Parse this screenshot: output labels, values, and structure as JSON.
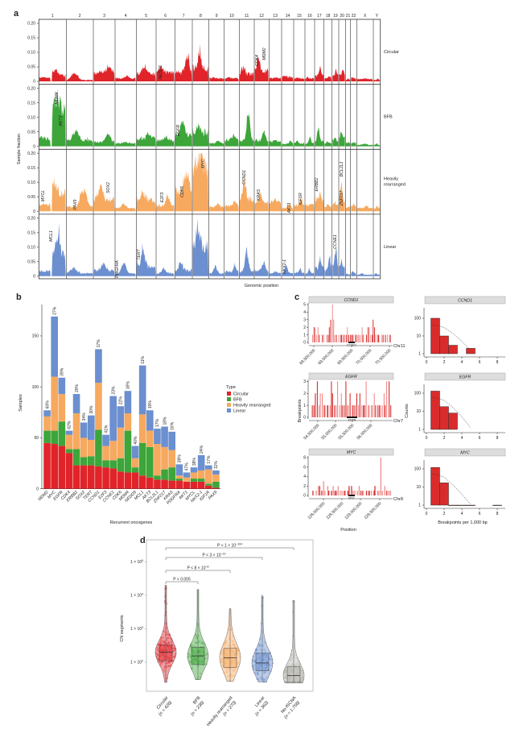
{
  "panel_labels": [
    "a",
    "b",
    "c",
    "d"
  ],
  "chart_data": [
    {
      "panel": "a",
      "type": "area",
      "ylabel": "Sample fraction",
      "xlabel": "Genomic position",
      "ylim": [
        0,
        0.2
      ],
      "yticks": [
        "0",
        "0.05",
        "0.10",
        "0.15",
        "0.20"
      ],
      "yticks_values": [
        0,
        0.05,
        0.1,
        0.15,
        0.2
      ],
      "chromosomes": [
        "1",
        "2",
        "3",
        "4",
        "5",
        "6",
        "7",
        "8",
        "9",
        "10",
        "11",
        "12",
        "13",
        "14",
        "15",
        "16",
        "17",
        "18",
        "19",
        "20",
        "21",
        "22",
        "X",
        "Y"
      ],
      "tracks": [
        {
          "name_lines": [
            "Circular"
          ],
          "color": "#e0242a",
          "base": [
            0.02,
            0.005,
            0.03,
            0.01,
            0.025,
            0.03,
            0.03,
            0.045,
            0.01,
            0.01,
            0.025,
            0.035,
            0.01,
            0.015,
            0.01,
            0.01,
            0.02,
            0.01,
            0.02,
            0.025,
            0.005,
            0.01,
            0.008,
            0.005
          ],
          "peak": [
            0.045,
            0.035,
            0.06,
            0.02,
            0.05,
            0.06,
            0.095,
            0.105,
            0.015,
            0.015,
            0.055,
            0.085,
            0.015,
            0.02,
            0.015,
            0.015,
            0.055,
            0.02,
            0.04,
            0.04,
            0.01,
            0.015,
            0.01,
            0.01
          ],
          "genes": [
            "NEDD9",
            "CDK4",
            "MDM2"
          ]
        },
        {
          "name_lines": [
            "BFB"
          ],
          "color": "#3da53a",
          "base": [
            0.12,
            0.02,
            0.015,
            0.01,
            0.025,
            0.02,
            0.04,
            0.05,
            0.01,
            0.02,
            0.02,
            0.02,
            0.015,
            0.008,
            0.01,
            0.01,
            0.02,
            0.01,
            0.02,
            0.03,
            0.01,
            0.01,
            0.005,
            0.005
          ],
          "peak": [
            0.17,
            0.06,
            0.045,
            0.015,
            0.05,
            0.035,
            0.1,
            0.075,
            0.02,
            0.04,
            0.155,
            0.055,
            0.025,
            0.02,
            0.02,
            0.04,
            0.075,
            0.02,
            0.03,
            0.06,
            0.015,
            0.015,
            0.01,
            0.01
          ],
          "genes": [
            "MDM4",
            "AKT3",
            "EGFR"
          ]
        },
        {
          "name_lines": [
            "Heavily",
            "rearranged"
          ],
          "color": "#f6a95f",
          "base": [
            0.06,
            0.015,
            0.04,
            0.01,
            0.04,
            0.02,
            0.07,
            0.15,
            0.015,
            0.02,
            0.04,
            0.03,
            0.03,
            0.01,
            0.02,
            0.02,
            0.04,
            0.015,
            0.02,
            0.04,
            0.01,
            0.015,
            0.01,
            0.01
          ],
          "peak": [
            0.105,
            0.095,
            0.095,
            0.03,
            0.07,
            0.055,
            0.15,
            0.2,
            0.03,
            0.035,
            0.12,
            0.065,
            0.04,
            0.03,
            0.05,
            0.03,
            0.07,
            0.03,
            0.035,
            0.12,
            0.02,
            0.03,
            0.02,
            0.02
          ],
          "genes": [
            "MYCL",
            "PAX9",
            "SOX2",
            "E2F3",
            "CDK6",
            "MYC",
            "CCND1",
            "KRAS",
            "AKT1",
            "IGF1R",
            "ERBB2",
            "BCL2L1",
            "ZNF217"
          ]
        },
        {
          "name_lines": [
            "Linear"
          ],
          "color": "#6b8fcf",
          "base": [
            0.06,
            0.01,
            0.02,
            0.01,
            0.03,
            0.01,
            0.02,
            0.1,
            0.01,
            0.015,
            0.015,
            0.02,
            0.01,
            0.01,
            0.01,
            0.01,
            0.03,
            0.02,
            0.04,
            0.03,
            0.005,
            0.01,
            0.005,
            0.005
          ],
          "peak": [
            0.145,
            0.03,
            0.05,
            0.05,
            0.1,
            0.03,
            0.05,
            0.18,
            0.04,
            0.04,
            0.11,
            0.05,
            0.02,
            0.04,
            0.03,
            0.03,
            0.07,
            0.07,
            0.11,
            0.06,
            0.01,
            0.02,
            0.01,
            0.01
          ],
          "genes": [
            "MCL1",
            "PDGFRA",
            "TERT",
            "NKX2-1",
            "CCNE1"
          ]
        }
      ]
    },
    {
      "panel": "b",
      "type": "bar",
      "stacked": true,
      "xlabel": "Recurrent oncogenes",
      "ylabel": "Samples",
      "ylim": [
        0,
        175
      ],
      "yticks": [
        "0",
        "50",
        "100",
        "150"
      ],
      "yticks_values": [
        0,
        50,
        100,
        150
      ],
      "legend_title": "Type",
      "legend_position": "right",
      "categories": [
        "MDM2",
        "MYC",
        "EGFR",
        "CDK4",
        "ERBB2",
        "SOX2",
        "TERT",
        "CCND1",
        "E2F3",
        "CCNE1",
        "CDK6",
        "MDM4",
        "NEDD9",
        "MCL1",
        "AKT3",
        "BCL2L1",
        "ZNF217",
        "KRAS",
        "PDGFRA",
        "AKT1",
        "MYCL",
        "NKX2-1",
        "IGF1R",
        "PAX9"
      ],
      "percent_labels": [
        "60%",
        "27%",
        "39%",
        "62%",
        "20%",
        "34%",
        "30%",
        "17%",
        "41%",
        "23%",
        "22%",
        "16%",
        "40%",
        "11%",
        "15%",
        "17%",
        "18%",
        "16%",
        "38%",
        "47%",
        "38%",
        "24%",
        "17%",
        "11%"
      ],
      "series": [
        {
          "name": "Circular",
          "color": "#e0242a",
          "values": [
            45,
            44,
            42,
            35,
            23,
            23,
            23,
            22,
            21,
            20,
            17,
            16,
            16,
            13,
            11,
            9,
            9,
            8,
            8,
            7,
            7,
            7,
            3,
            1
          ]
        },
        {
          "name": "BFB",
          "color": "#3da53a",
          "values": [
            12,
            13,
            24,
            4,
            16,
            8,
            9,
            36,
            7,
            8,
            13,
            41,
            5,
            32,
            30,
            4,
            10,
            13,
            2,
            0,
            3,
            3,
            2,
            6
          ]
        },
        {
          "name": "Heavily rearranged",
          "color": "#f6a95f",
          "values": [
            14,
            53,
            27,
            14,
            35,
            19,
            16,
            46,
            14,
            19,
            30,
            17,
            9,
            28,
            16,
            31,
            22,
            17,
            3,
            4,
            6,
            8,
            14,
            7
          ]
        },
        {
          "name": "Linear",
          "color": "#6b8fcf",
          "values": [
            6,
            59,
            16,
            4,
            19,
            15,
            24,
            33,
            11,
            44,
            21,
            22,
            12,
            48,
            20,
            15,
            20,
            18,
            11,
            5,
            5,
            15,
            4,
            4
          ]
        }
      ]
    },
    {
      "panel": "c",
      "type": "bar",
      "ylabel": "Breakpoints",
      "xlabel": "Position",
      "plots": [
        {
          "gene": "CCND1",
          "chromosome": "Chr11",
          "ylim": [
            0,
            5
          ],
          "yticks": [
            "0",
            "1",
            "2",
            "3",
            "4",
            "5"
          ],
          "xticks": [
            "68,500,000",
            "69,000,000",
            "69,500,000",
            "70,000,000",
            "70,500,000"
          ],
          "breakpoints": [
            1,
            2,
            2,
            1,
            2,
            1,
            0,
            1,
            1,
            0,
            1,
            1,
            2,
            3,
            5,
            3,
            1,
            1,
            0,
            1,
            1,
            1,
            1,
            1,
            1,
            2,
            1,
            1,
            1,
            1,
            1,
            1,
            1,
            1,
            1,
            2,
            1,
            0,
            1,
            2,
            2,
            1,
            1,
            3,
            2,
            1,
            1,
            1,
            0,
            1,
            1,
            1,
            1,
            1,
            1,
            1
          ]
        },
        {
          "gene": "EGFR",
          "chromosome": "Chr7",
          "ylim": [
            0,
            3
          ],
          "yticks": [
            "0",
            "1",
            "2",
            "3"
          ],
          "xticks": [
            "54,500,000",
            "55,000,000",
            "55,500,000",
            "56,000,000"
          ],
          "breakpoints": [
            1,
            1,
            2,
            3,
            1,
            2,
            2,
            1,
            1,
            1,
            1,
            1,
            3,
            2,
            1,
            1,
            3,
            1,
            2,
            1,
            1,
            3,
            1,
            1,
            2,
            1,
            1,
            1,
            2,
            1,
            2,
            1,
            1,
            1,
            3,
            1,
            1,
            1,
            1,
            2,
            1,
            1,
            1,
            1,
            1,
            2,
            1,
            3,
            3,
            1
          ]
        },
        {
          "gene": "MYC",
          "chromosome": "Chr8",
          "ylim": [
            0,
            8
          ],
          "yticks": [
            "0",
            "2",
            "4",
            "6",
            "8"
          ],
          "xticks": [
            "128,000,000",
            "128,500,000",
            "129,000,000",
            "129,500,000"
          ],
          "breakpoints": [
            1,
            0,
            1,
            2,
            2,
            1,
            3,
            1,
            2,
            1,
            1,
            2,
            1,
            1,
            2,
            1,
            1,
            1,
            1,
            1,
            2,
            2,
            1,
            1,
            1,
            2,
            1,
            1,
            0,
            1,
            1,
            1,
            1,
            1,
            2,
            1,
            1,
            8,
            1,
            2,
            1,
            1,
            1
          ]
        }
      ]
    },
    {
      "panel": "c-right",
      "type": "bar",
      "ylabel": "Counts",
      "xlabel": "Breakpoints per 1,000 bp",
      "yscale": "log",
      "yticks": [
        "1",
        "10",
        "100"
      ],
      "xticks": [
        "0",
        "2",
        "4",
        "6",
        "8"
      ],
      "plots": [
        {
          "gene": "CCND1",
          "bins": [
            1,
            2,
            3,
            5
          ],
          "counts": [
            100,
            10,
            3,
            2
          ],
          "fit": [
            [
              0.5,
              40
            ],
            [
              1,
              42
            ],
            [
              2,
              30
            ],
            [
              3,
              14
            ],
            [
              4,
              5
            ],
            [
              5,
              1.5
            ]
          ]
        },
        {
          "gene": "EGFR",
          "bins": [
            1,
            2,
            3
          ],
          "counts": [
            130,
            18,
            8
          ],
          "fit": [
            [
              0.5,
              55
            ],
            [
              1,
              58
            ],
            [
              2,
              40
            ],
            [
              3,
              16
            ],
            [
              4,
              5
            ],
            [
              5,
              1.2
            ]
          ]
        },
        {
          "gene": "MYC",
          "bins": [
            1,
            2,
            3,
            4,
            5,
            8
          ],
          "counts": [
            120,
            17,
            1,
            1,
            1,
            1
          ],
          "fit": [
            [
              0.5,
              50
            ],
            [
              1,
              52
            ],
            [
              2,
              35
            ],
            [
              3,
              13
            ],
            [
              4,
              4
            ],
            [
              5,
              1.1
            ]
          ]
        }
      ]
    },
    {
      "panel": "d",
      "type": "violin",
      "ylabel": "CN segments",
      "yscale": "log",
      "yticks": [
        {
          "base": "1 × 10",
          "exp": "2"
        },
        {
          "base": "1 × 10",
          "exp": "3"
        },
        {
          "base": "1 × 10",
          "exp": "4"
        },
        {
          "base": "1 × 10",
          "exp": "5"
        }
      ],
      "groups": [
        {
          "name": "Circular",
          "n": "(n = 426)",
          "color": "#e0242a",
          "median": 200,
          "q1": 110,
          "q3": 330,
          "min": 25,
          "max": 20000
        },
        {
          "name": "BFB",
          "n": "(n = 236)",
          "color": "#3da53a",
          "median": 155,
          "q1": 85,
          "q3": 280,
          "min": 30,
          "max": 15000
        },
        {
          "name": "Heavily rearranged",
          "n": "(n = 270)",
          "color": "#f6a95f",
          "median": 135,
          "q1": 70,
          "q3": 260,
          "min": 27,
          "max": 4000
        },
        {
          "name": "Linear",
          "n": "(n = 362)",
          "color": "#6b8fcf",
          "median": 95,
          "q1": 55,
          "q3": 185,
          "min": 26,
          "max": 10000
        },
        {
          "name": "No-fSCNA",
          "n": "(n = 1,756)",
          "color": "#b8b8b0",
          "median": 40,
          "q1": 25,
          "q3": 75,
          "min": 25,
          "max": 7000
        }
      ],
      "comparisons": [
        {
          "from": 0,
          "to": 1,
          "base": "P < 0.005",
          "exp": ""
        },
        {
          "from": 0,
          "to": 2,
          "base": "P < 8 × 10",
          "exp": "−8"
        },
        {
          "from": 0,
          "to": 3,
          "base": "P < 3 × 10",
          "exp": "−19"
        },
        {
          "from": 0,
          "to": 4,
          "base": "P < 1 × 10",
          "exp": "−104"
        }
      ]
    }
  ]
}
